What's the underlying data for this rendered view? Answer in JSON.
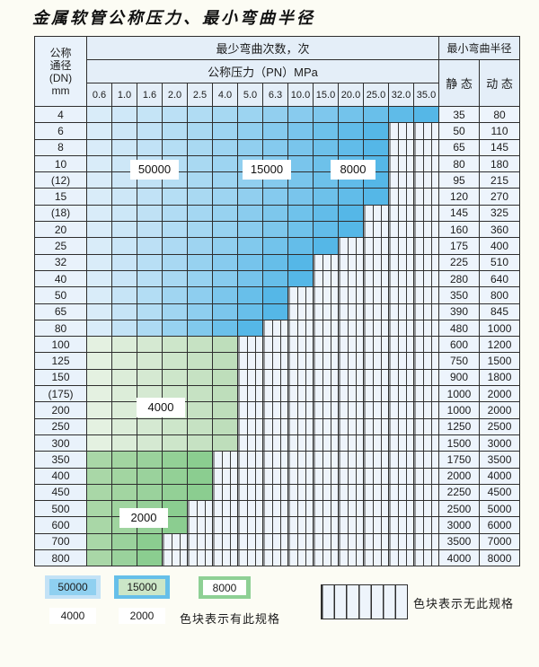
{
  "title": "金属软管公称压力、最小弯曲半径",
  "table": {
    "header": {
      "dn_lines": [
        "公称",
        "通径",
        "(DN)",
        "mm"
      ],
      "cycles_label": "最少弯曲次数，次",
      "pressure_label": "公称压力（PN）MPa",
      "radius_label": "最小弯曲半径",
      "static_label": "静 态",
      "dynamic_label": "动 态",
      "pressures": [
        "0.6",
        "1.0",
        "1.6",
        "2.0",
        "2.5",
        "4.0",
        "5.0",
        "6.3",
        "10.0",
        "15.0",
        "20.0",
        "25.0",
        "32.0",
        "35.0"
      ]
    },
    "fills": {
      "blue": {
        "start": "#d9ecf9",
        "end": "#55b7e7"
      },
      "green_light": {
        "start": "#e4f1e1",
        "end": "#bedebb"
      },
      "green": {
        "start": "#a9d7a7",
        "end": "#8bcd90"
      }
    },
    "rows": [
      {
        "dn": "4",
        "spec_columns": 14,
        "cycle_class": "blue",
        "static": "35",
        "dynamic": "80"
      },
      {
        "dn": "6",
        "spec_columns": 12,
        "cycle_class": "blue",
        "static": "50",
        "dynamic": "110"
      },
      {
        "dn": "8",
        "spec_columns": 12,
        "cycle_class": "blue",
        "static": "65",
        "dynamic": "145"
      },
      {
        "dn": "10",
        "spec_columns": 12,
        "cycle_class": "blue",
        "static": "80",
        "dynamic": "180"
      },
      {
        "dn": "(12)",
        "spec_columns": 12,
        "cycle_class": "blue",
        "static": "95",
        "dynamic": "215"
      },
      {
        "dn": "15",
        "spec_columns": 12,
        "cycle_class": "blue",
        "static": "120",
        "dynamic": "270"
      },
      {
        "dn": "(18)",
        "spec_columns": 11,
        "cycle_class": "blue",
        "static": "145",
        "dynamic": "325"
      },
      {
        "dn": "20",
        "spec_columns": 11,
        "cycle_class": "blue",
        "static": "160",
        "dynamic": "360"
      },
      {
        "dn": "25",
        "spec_columns": 10,
        "cycle_class": "blue",
        "static": "175",
        "dynamic": "400"
      },
      {
        "dn": "32",
        "spec_columns": 9,
        "cycle_class": "blue",
        "static": "225",
        "dynamic": "510"
      },
      {
        "dn": "40",
        "spec_columns": 9,
        "cycle_class": "blue",
        "static": "280",
        "dynamic": "640"
      },
      {
        "dn": "50",
        "spec_columns": 8,
        "cycle_class": "blue",
        "static": "350",
        "dynamic": "800"
      },
      {
        "dn": "65",
        "spec_columns": 8,
        "cycle_class": "blue",
        "static": "390",
        "dynamic": "845"
      },
      {
        "dn": "80",
        "spec_columns": 7,
        "cycle_class": "blue",
        "static": "480",
        "dynamic": "1000"
      },
      {
        "dn": "100",
        "spec_columns": 6,
        "cycle_class": "green_light",
        "static": "600",
        "dynamic": "1200"
      },
      {
        "dn": "125",
        "spec_columns": 6,
        "cycle_class": "green_light",
        "static": "750",
        "dynamic": "1500"
      },
      {
        "dn": "150",
        "spec_columns": 6,
        "cycle_class": "green_light",
        "static": "900",
        "dynamic": "1800"
      },
      {
        "dn": "(175)",
        "spec_columns": 6,
        "cycle_class": "green_light",
        "static": "1000",
        "dynamic": "2000"
      },
      {
        "dn": "200",
        "spec_columns": 6,
        "cycle_class": "green_light",
        "static": "1000",
        "dynamic": "2000"
      },
      {
        "dn": "250",
        "spec_columns": 6,
        "cycle_class": "green_light",
        "static": "1250",
        "dynamic": "2500"
      },
      {
        "dn": "300",
        "spec_columns": 6,
        "cycle_class": "green_light",
        "static": "1500",
        "dynamic": "3000"
      },
      {
        "dn": "350",
        "spec_columns": 5,
        "cycle_class": "green",
        "static": "1750",
        "dynamic": "3500"
      },
      {
        "dn": "400",
        "spec_columns": 5,
        "cycle_class": "green",
        "static": "2000",
        "dynamic": "4000"
      },
      {
        "dn": "450",
        "spec_columns": 5,
        "cycle_class": "green",
        "static": "2250",
        "dynamic": "4500"
      },
      {
        "dn": "500",
        "spec_columns": 4,
        "cycle_class": "green",
        "static": "2500",
        "dynamic": "5000"
      },
      {
        "dn": "600",
        "spec_columns": 4,
        "cycle_class": "green",
        "static": "3000",
        "dynamic": "6000"
      },
      {
        "dn": "700",
        "spec_columns": 3,
        "cycle_class": "green",
        "static": "3500",
        "dynamic": "7000"
      },
      {
        "dn": "800",
        "spec_columns": 3,
        "cycle_class": "green",
        "static": "4000",
        "dynamic": "8000"
      }
    ]
  },
  "overlays": [
    {
      "text": "50000"
    },
    {
      "text": "15000"
    },
    {
      "text": "8000"
    },
    {
      "text": "4000"
    },
    {
      "text": "2000"
    }
  ],
  "legend": {
    "items": [
      {
        "label": "50000",
        "color": "#c3e2f6"
      },
      {
        "label": "15000",
        "color": "#8fd0f0"
      },
      {
        "label": "8000",
        "color": "#66bfe9"
      },
      {
        "label": "4000",
        "color": "#cbe6c7"
      },
      {
        "label": "2000",
        "color": "#8ed095"
      }
    ],
    "has_spec_text": "色块表示有此规格",
    "no_spec_text": "色块表示无此规格"
  }
}
